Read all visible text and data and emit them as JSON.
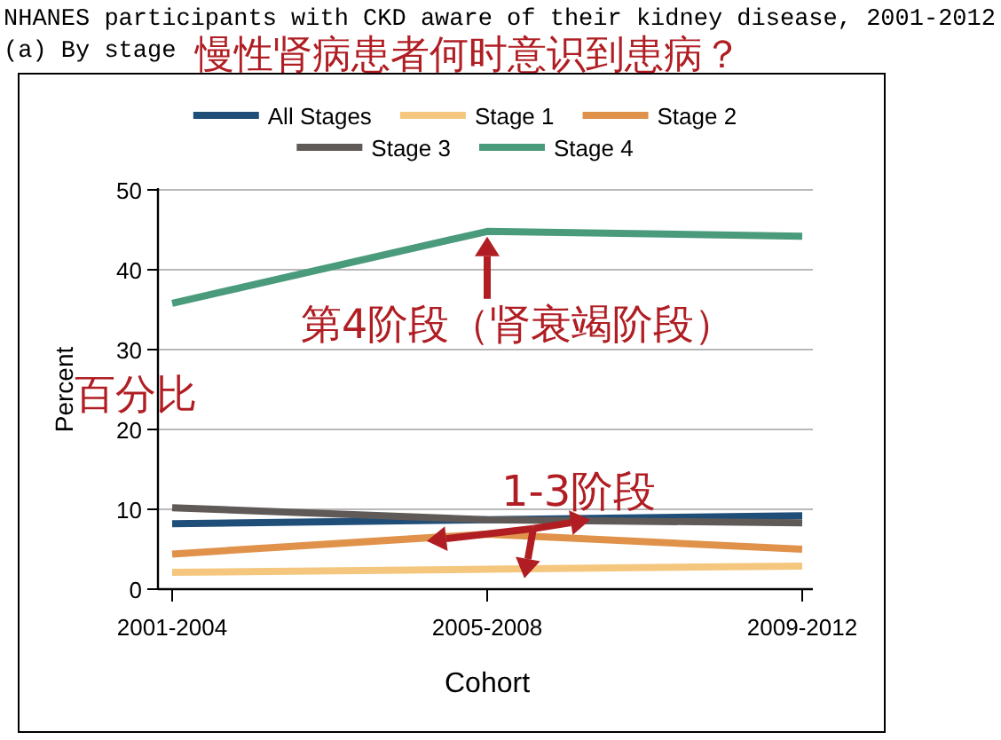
{
  "chart_data": {
    "type": "line",
    "title": "NHANES participants with CKD aware of their kidney disease, 2001-2012",
    "subtitle": "(a) By stage",
    "xlabel": "Cohort",
    "ylabel": "Percent",
    "categories": [
      "2001-2004",
      "2005-2008",
      "2009-2012"
    ],
    "series": [
      {
        "name": "All Stages",
        "color": "#1f4e79",
        "values": [
          8.2,
          8.7,
          9.2
        ]
      },
      {
        "name": "Stage 1",
        "color": "#f5c77e",
        "values": [
          2.1,
          2.5,
          2.9
        ]
      },
      {
        "name": "Stage 2",
        "color": "#e0924a",
        "values": [
          4.4,
          6.9,
          5.0
        ]
      },
      {
        "name": "Stage 3",
        "color": "#5f5a57",
        "values": [
          10.2,
          8.7,
          8.3
        ]
      },
      {
        "name": "Stage 4",
        "color": "#4a9a7c",
        "values": [
          35.8,
          44.8,
          44.2
        ]
      }
    ],
    "ylim": [
      0,
      50
    ],
    "yticks": [
      0,
      10,
      20,
      30,
      40,
      50
    ],
    "grid": "y",
    "legend": "top",
    "marker": "none",
    "line_style": "solid",
    "annotations": [
      "慢性肾病患者何时意识到患病？",
      {
        "text": "第4阶段（肾衰竭阶段）",
        "x": "2005-2008",
        "y": 44.8
      },
      "百分比",
      {
        "text": "1-3阶段",
        "x": "2005-2008",
        "y": 8.7
      }
    ]
  }
}
